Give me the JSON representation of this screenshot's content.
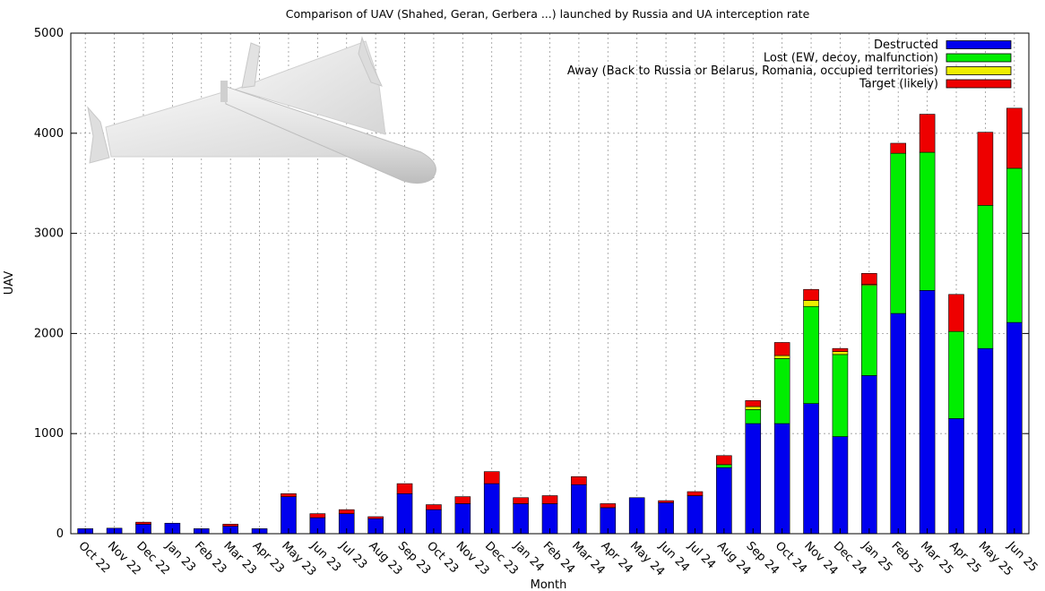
{
  "chart_data": {
    "type": "bar",
    "stacked": true,
    "title": "Comparison of UAV (Shahed, Geran, Gerbera ...) launched by Russia and UA interception rate",
    "xlabel": "Month",
    "ylabel": "UAV",
    "ylim": [
      0,
      5000
    ],
    "yticks": [
      0,
      1000,
      2000,
      3000,
      4000,
      5000
    ],
    "grid": true,
    "legend_position": "top-right",
    "categories": [
      "Oct 22",
      "Nov 22",
      "Dec 22",
      "Jan 23",
      "Feb 23",
      "Mar 23",
      "Apr 23",
      "May 23",
      "Jun 23",
      "Jul 23",
      "Aug 23",
      "Sep 23",
      "Oct 23",
      "Nov 23",
      "Dec 23",
      "Jan 24",
      "Feb 24",
      "Mar 24",
      "Apr 24",
      "May 24",
      "Jun 24",
      "Jul 24",
      "Aug 24",
      "Sep 24",
      "Oct 24",
      "Nov 24",
      "Dec 24",
      "Jan 25",
      "Feb 25",
      "Mar 25",
      "Apr 25",
      "May 25",
      "Jun 25"
    ],
    "series": [
      {
        "name": "Destructed",
        "color": "#0000ee",
        "values": [
          50,
          55,
          95,
          105,
          50,
          75,
          50,
          370,
          160,
          200,
          150,
          400,
          240,
          300,
          500,
          300,
          300,
          490,
          260,
          360,
          310,
          380,
          660,
          1100,
          1100,
          1300,
          970,
          1580,
          2200,
          2430,
          1150,
          1850,
          2110
        ]
      },
      {
        "name": "Lost (EW, decoy, malfunction)",
        "color": "#00ee00",
        "values": [
          0,
          0,
          0,
          0,
          0,
          0,
          0,
          0,
          0,
          0,
          0,
          0,
          0,
          0,
          0,
          0,
          0,
          0,
          0,
          0,
          0,
          0,
          30,
          140,
          650,
          970,
          820,
          900,
          1600,
          1380,
          870,
          1430,
          1540
        ]
      },
      {
        "name": "Away (Back to Russia or Belarus, Romania, occupied territories)",
        "color": "#eeee00",
        "values": [
          0,
          0,
          0,
          0,
          0,
          0,
          0,
          0,
          0,
          0,
          0,
          0,
          0,
          0,
          0,
          0,
          0,
          0,
          0,
          0,
          0,
          0,
          0,
          30,
          30,
          60,
          30,
          10,
          0,
          0,
          0,
          0,
          0
        ]
      },
      {
        "name": "Target (likely)",
        "color": "#ee0000",
        "values": [
          0,
          0,
          20,
          0,
          0,
          20,
          0,
          30,
          40,
          40,
          20,
          100,
          50,
          70,
          120,
          60,
          80,
          80,
          40,
          0,
          20,
          40,
          90,
          60,
          130,
          110,
          30,
          110,
          100,
          380,
          370,
          730,
          600
        ]
      }
    ]
  }
}
